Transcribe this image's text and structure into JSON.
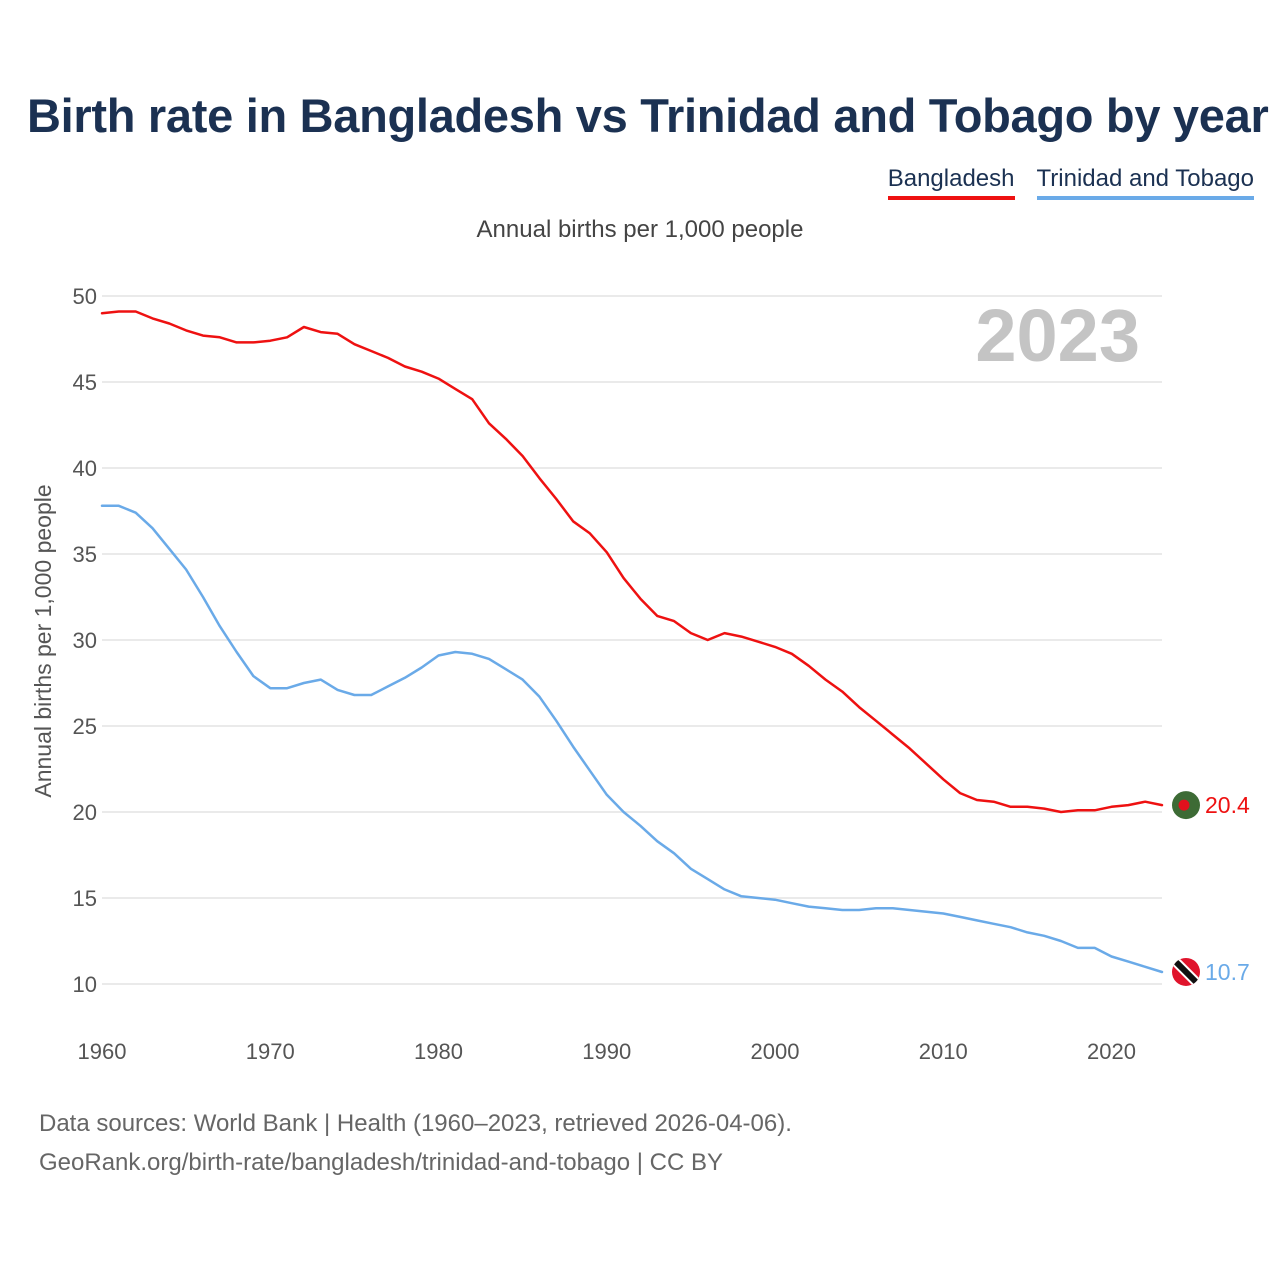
{
  "title": "Birth rate in Bangladesh vs Trinidad and Tobago by year",
  "subtitle": "Annual births per 1,000 people",
  "year_watermark": "2023",
  "footer": {
    "line1": "Data sources: World Bank | Health (1960–2023, retrieved 2026-04-06).",
    "line2": "GeoRank.org/birth-rate/bangladesh/trinidad-and-tobago | CC BY"
  },
  "legend": [
    {
      "label": "Bangladesh",
      "color": "#ee1111"
    },
    {
      "label": "Trinidad and Tobago",
      "color": "#6aaae8"
    }
  ],
  "chart_data": {
    "type": "line",
    "title": "Birth rate in Bangladesh vs Trinidad and Tobago by year",
    "xlabel": "",
    "ylabel": "Annual births per 1,000 people",
    "xlim": [
      1960,
      2023
    ],
    "ylim": [
      10,
      50
    ],
    "x_ticks": [
      1960,
      1970,
      1980,
      1990,
      2000,
      2010,
      2020
    ],
    "y_ticks": [
      10,
      15,
      20,
      25,
      30,
      35,
      40,
      45,
      50
    ],
    "grid": true,
    "legend_position": "top-right",
    "x": [
      1960,
      1961,
      1962,
      1963,
      1964,
      1965,
      1966,
      1967,
      1968,
      1969,
      1970,
      1971,
      1972,
      1973,
      1974,
      1975,
      1976,
      1977,
      1978,
      1979,
      1980,
      1981,
      1982,
      1983,
      1984,
      1985,
      1986,
      1987,
      1988,
      1989,
      1990,
      1991,
      1992,
      1993,
      1994,
      1995,
      1996,
      1997,
      1998,
      1999,
      2000,
      2001,
      2002,
      2003,
      2004,
      2005,
      2006,
      2007,
      2008,
      2009,
      2010,
      2011,
      2012,
      2013,
      2014,
      2015,
      2016,
      2017,
      2018,
      2019,
      2020,
      2021,
      2022,
      2023
    ],
    "series": [
      {
        "name": "Bangladesh",
        "color": "#ee1111",
        "end_label": "20.4",
        "values": [
          49.0,
          49.1,
          49.1,
          48.7,
          48.4,
          48.0,
          47.7,
          47.6,
          47.3,
          47.3,
          47.4,
          47.6,
          48.2,
          47.9,
          47.8,
          47.2,
          46.8,
          46.4,
          45.9,
          45.6,
          45.2,
          44.6,
          44.0,
          42.6,
          41.7,
          40.7,
          39.4,
          38.2,
          36.9,
          36.2,
          35.1,
          33.6,
          32.4,
          31.4,
          31.1,
          30.4,
          30.0,
          30.4,
          30.2,
          29.9,
          29.6,
          29.2,
          28.5,
          27.7,
          27.0,
          26.1,
          25.3,
          24.5,
          23.7,
          22.8,
          21.9,
          21.1,
          20.7,
          20.6,
          20.3,
          20.3,
          20.2,
          20.0,
          20.1,
          20.1,
          20.3,
          20.4,
          20.6,
          20.4
        ]
      },
      {
        "name": "Trinidad and Tobago",
        "color": "#6aaae8",
        "end_label": "10.7",
        "values": [
          37.8,
          37.8,
          37.4,
          36.5,
          35.3,
          34.1,
          32.5,
          30.8,
          29.3,
          27.9,
          27.2,
          27.2,
          27.5,
          27.7,
          27.1,
          26.8,
          26.8,
          27.3,
          27.8,
          28.4,
          29.1,
          29.3,
          29.2,
          28.9,
          28.3,
          27.7,
          26.7,
          25.3,
          23.8,
          22.4,
          21.0,
          20.0,
          19.2,
          18.3,
          17.6,
          16.7,
          16.1,
          15.5,
          15.1,
          15.0,
          14.9,
          14.7,
          14.5,
          14.4,
          14.3,
          14.3,
          14.4,
          14.4,
          14.3,
          14.2,
          14.1,
          13.9,
          13.7,
          13.5,
          13.3,
          13.0,
          12.8,
          12.5,
          12.1,
          12.1,
          11.6,
          11.3,
          11.0,
          10.7
        ]
      }
    ]
  }
}
